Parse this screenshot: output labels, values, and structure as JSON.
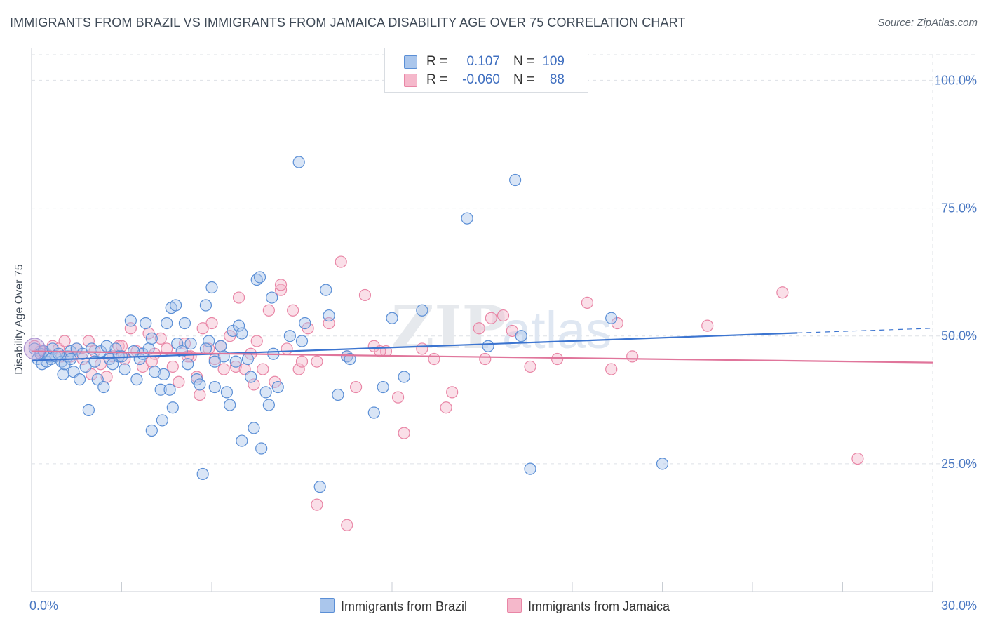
{
  "header": {
    "title": "IMMIGRANTS FROM BRAZIL VS IMMIGRANTS FROM JAMAICA DISABILITY AGE OVER 75 CORRELATION CHART",
    "source": "Source: ZipAtlas.com"
  },
  "legend": {
    "rows": [
      {
        "r_label": "R =",
        "r_value": "0.107",
        "n_label": "N =",
        "n_value": "109"
      },
      {
        "r_label": "R =",
        "r_value": "-0.060",
        "n_label": "N =",
        "n_value": "88"
      }
    ],
    "bottom": [
      {
        "label": "Immigrants from Brazil"
      },
      {
        "label": "Immigrants from Jamaica"
      }
    ]
  },
  "colors": {
    "brazil_fill": "#aac6ec",
    "brazil_stroke": "#5b8fd6",
    "brazil_line": "#3b74d0",
    "jamaica_fill": "#f5b8cb",
    "jamaica_stroke": "#e986a6",
    "jamaica_line": "#e0759b",
    "grid": "#dde1e6",
    "tick_text": "#4a78c2"
  },
  "chart_data": {
    "type": "scatter",
    "title": "IMMIGRANTS FROM BRAZIL VS IMMIGRANTS FROM JAMAICA DISABILITY AGE OVER 75 CORRELATION CHART",
    "xlabel": "",
    "ylabel": "Disability Age Over 75",
    "xlim": [
      0,
      30
    ],
    "ylim": [
      0,
      105
    ],
    "x_tick_labels": [
      "0.0%",
      "30.0%"
    ],
    "y_tick_labels": [
      "100.0%",
      "75.0%",
      "50.0%",
      "25.0%"
    ],
    "y_ticks": [
      100,
      75,
      50,
      25
    ],
    "grid": true,
    "legend_position": "top-center",
    "watermark": "ZIPatlas",
    "series": [
      {
        "name": "Immigrants from Brazil",
        "r": 0.107,
        "n": 109,
        "trend": {
          "x": [
            0,
            25.5
          ],
          "y": [
            45.2,
            50.6
          ],
          "dashed_to": [
            30,
            51.5
          ]
        },
        "points": [
          [
            0.1,
            47.5
          ],
          [
            0.2,
            45.5
          ],
          [
            0.3,
            46.5
          ],
          [
            0.35,
            44.5
          ],
          [
            0.4,
            47.0
          ],
          [
            0.5,
            45.0
          ],
          [
            0.6,
            46.0
          ],
          [
            0.65,
            45.5
          ],
          [
            0.7,
            47.5
          ],
          [
            0.8,
            46.0
          ],
          [
            1.0,
            45.0
          ],
          [
            1.05,
            42.5
          ],
          [
            1.1,
            44.5
          ],
          [
            1.2,
            46.0
          ],
          [
            1.3,
            47.0
          ],
          [
            1.4,
            43.0
          ],
          [
            1.5,
            47.5
          ],
          [
            1.6,
            41.5
          ],
          [
            1.7,
            46.5
          ],
          [
            1.8,
            44.0
          ],
          [
            2.0,
            47.5
          ],
          [
            2.1,
            45.0
          ],
          [
            2.2,
            41.5
          ],
          [
            2.3,
            47.0
          ],
          [
            2.4,
            40.0
          ],
          [
            2.6,
            45.5
          ],
          [
            2.7,
            44.5
          ],
          [
            2.8,
            47.5
          ],
          [
            2.9,
            46.0
          ],
          [
            3.1,
            43.5
          ],
          [
            3.3,
            53.0
          ],
          [
            3.5,
            41.5
          ],
          [
            3.6,
            45.5
          ],
          [
            3.7,
            46.5
          ],
          [
            3.8,
            52.5
          ],
          [
            3.9,
            47.5
          ],
          [
            4.0,
            49.5
          ],
          [
            4.1,
            43.0
          ],
          [
            4.3,
            39.5
          ],
          [
            4.35,
            33.5
          ],
          [
            4.4,
            42.5
          ],
          [
            4.5,
            52.5
          ],
          [
            4.6,
            39.5
          ],
          [
            4.65,
            55.5
          ],
          [
            4.8,
            56.0
          ],
          [
            4.85,
            48.5
          ],
          [
            5.0,
            47.0
          ],
          [
            5.1,
            52.5
          ],
          [
            5.2,
            44.5
          ],
          [
            5.3,
            48.5
          ],
          [
            5.5,
            41.5
          ],
          [
            5.6,
            40.5
          ],
          [
            5.7,
            23.0
          ],
          [
            5.8,
            56.0
          ],
          [
            5.9,
            49.0
          ],
          [
            6.0,
            59.5
          ],
          [
            6.1,
            40.0
          ],
          [
            6.3,
            48.0
          ],
          [
            6.4,
            46.0
          ],
          [
            6.5,
            39.0
          ],
          [
            6.6,
            36.5
          ],
          [
            6.7,
            51.0
          ],
          [
            6.8,
            45.0
          ],
          [
            6.9,
            52.0
          ],
          [
            7.0,
            50.5
          ],
          [
            7.2,
            45.5
          ],
          [
            7.3,
            42.0
          ],
          [
            7.4,
            32.0
          ],
          [
            7.5,
            61.0
          ],
          [
            7.6,
            61.5
          ],
          [
            7.65,
            28.0
          ],
          [
            7.8,
            39.0
          ],
          [
            7.9,
            36.5
          ],
          [
            8.0,
            57.5
          ],
          [
            8.05,
            46.5
          ],
          [
            8.2,
            40.0
          ],
          [
            8.6,
            50.0
          ],
          [
            8.9,
            84.0
          ],
          [
            9.0,
            49.0
          ],
          [
            9.1,
            52.5
          ],
          [
            9.6,
            20.5
          ],
          [
            9.8,
            59.0
          ],
          [
            9.9,
            54.0
          ],
          [
            10.2,
            38.5
          ],
          [
            10.5,
            46.0
          ],
          [
            10.6,
            45.5
          ],
          [
            11.4,
            35.0
          ],
          [
            11.7,
            40.0
          ],
          [
            12.0,
            53.5
          ],
          [
            12.4,
            42.0
          ],
          [
            13.0,
            55.0
          ],
          [
            14.5,
            73.0
          ],
          [
            15.2,
            48.0
          ],
          [
            16.1,
            80.5
          ],
          [
            16.3,
            50.0
          ],
          [
            16.6,
            24.0
          ],
          [
            19.3,
            53.5
          ],
          [
            21.0,
            25.0
          ],
          [
            3.0,
            46.0
          ],
          [
            1.9,
            35.5
          ],
          [
            4.0,
            31.5
          ],
          [
            6.1,
            45.0
          ],
          [
            2.5,
            48.0
          ],
          [
            1.3,
            45.5
          ],
          [
            0.9,
            46.5
          ],
          [
            3.4,
            47.0
          ],
          [
            5.8,
            47.5
          ],
          [
            7.0,
            29.5
          ],
          [
            4.7,
            36.0
          ]
        ]
      },
      {
        "name": "Immigrants from Jamaica",
        "r": -0.06,
        "n": 88,
        "trend": {
          "x": [
            0,
            30
          ],
          "y": [
            47.0,
            44.8
          ]
        },
        "points": [
          [
            0.1,
            48.0
          ],
          [
            0.3,
            47.0
          ],
          [
            0.5,
            46.5
          ],
          [
            0.7,
            48.0
          ],
          [
            0.9,
            47.5
          ],
          [
            1.1,
            49.0
          ],
          [
            1.3,
            46.0
          ],
          [
            1.5,
            47.5
          ],
          [
            1.7,
            45.5
          ],
          [
            1.9,
            49.0
          ],
          [
            2.1,
            47.0
          ],
          [
            2.3,
            44.5
          ],
          [
            2.5,
            42.0
          ],
          [
            2.7,
            46.0
          ],
          [
            2.9,
            48.0
          ],
          [
            3.1,
            45.5
          ],
          [
            3.3,
            51.5
          ],
          [
            3.5,
            47.0
          ],
          [
            3.7,
            44.0
          ],
          [
            3.9,
            50.5
          ],
          [
            4.1,
            46.5
          ],
          [
            4.3,
            49.5
          ],
          [
            4.5,
            47.5
          ],
          [
            4.7,
            44.0
          ],
          [
            4.9,
            41.0
          ],
          [
            5.1,
            48.5
          ],
          [
            5.3,
            46.0
          ],
          [
            5.5,
            42.0
          ],
          [
            5.6,
            38.5
          ],
          [
            5.7,
            51.5
          ],
          [
            5.9,
            47.5
          ],
          [
            6.1,
            45.5
          ],
          [
            6.3,
            48.0
          ],
          [
            6.4,
            43.5
          ],
          [
            6.6,
            50.0
          ],
          [
            6.8,
            44.0
          ],
          [
            6.9,
            57.5
          ],
          [
            7.1,
            43.5
          ],
          [
            7.3,
            46.5
          ],
          [
            7.5,
            49.0
          ],
          [
            7.7,
            43.5
          ],
          [
            7.9,
            55.0
          ],
          [
            8.1,
            41.0
          ],
          [
            8.3,
            59.0
          ],
          [
            8.5,
            47.5
          ],
          [
            8.7,
            55.0
          ],
          [
            8.9,
            43.5
          ],
          [
            9.2,
            51.5
          ],
          [
            9.5,
            45.0
          ],
          [
            9.9,
            52.5
          ],
          [
            10.3,
            64.5
          ],
          [
            10.5,
            46.0
          ],
          [
            10.8,
            40.0
          ],
          [
            11.1,
            58.0
          ],
          [
            11.4,
            48.0
          ],
          [
            11.8,
            47.0
          ],
          [
            12.2,
            38.0
          ],
          [
            12.4,
            31.0
          ],
          [
            13.0,
            47.5
          ],
          [
            13.4,
            45.5
          ],
          [
            13.8,
            36.0
          ],
          [
            14.0,
            39.0
          ],
          [
            14.9,
            51.5
          ],
          [
            15.3,
            53.5
          ],
          [
            15.7,
            54.0
          ],
          [
            16.0,
            51.0
          ],
          [
            16.6,
            44.0
          ],
          [
            17.5,
            45.5
          ],
          [
            18.5,
            56.5
          ],
          [
            19.3,
            43.5
          ],
          [
            19.5,
            52.5
          ],
          [
            20.0,
            46.0
          ],
          [
            22.5,
            52.0
          ],
          [
            25.0,
            58.5
          ],
          [
            27.5,
            26.0
          ],
          [
            9.5,
            17.0
          ],
          [
            10.5,
            13.0
          ],
          [
            8.3,
            60.0
          ],
          [
            7.4,
            40.5
          ],
          [
            5.2,
            46.0
          ],
          [
            3.0,
            48.0
          ],
          [
            1.0,
            46.0
          ],
          [
            2.0,
            42.5
          ],
          [
            4.0,
            45.0
          ],
          [
            6.0,
            52.5
          ],
          [
            11.6,
            47.0
          ],
          [
            15.1,
            45.5
          ],
          [
            9.0,
            45.0
          ]
        ]
      }
    ]
  }
}
